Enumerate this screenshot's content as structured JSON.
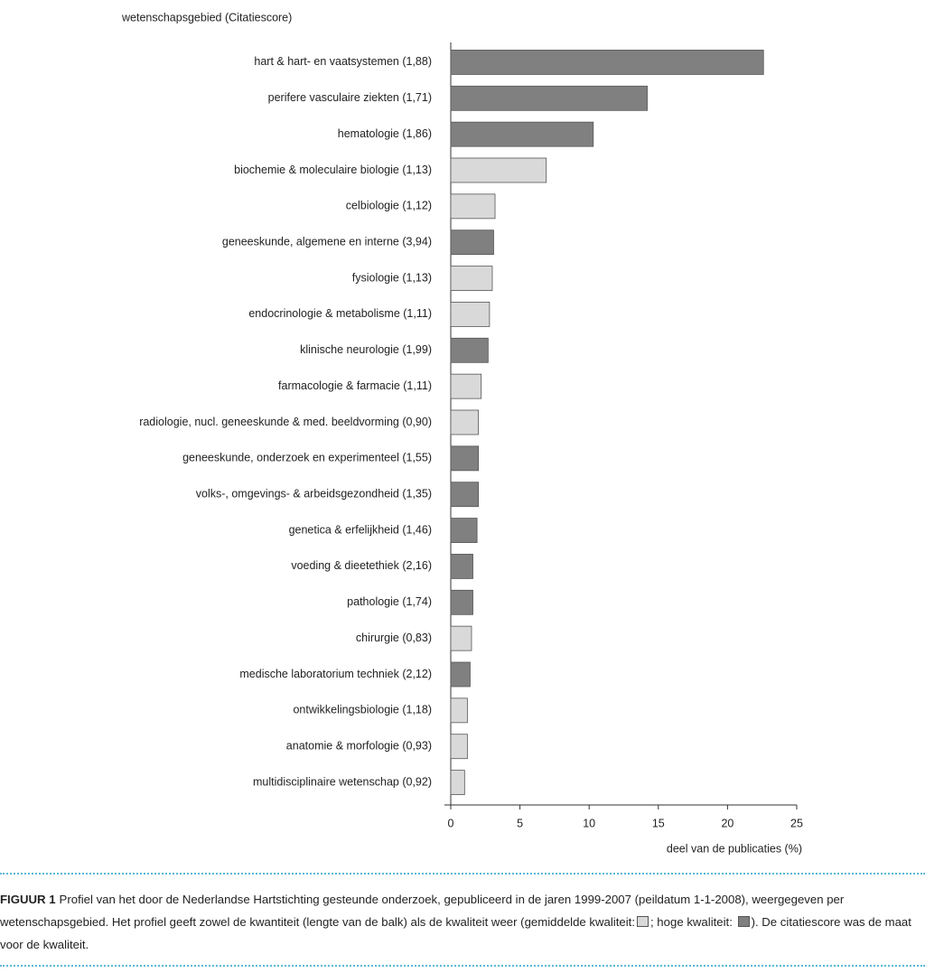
{
  "chart_data": {
    "type": "barh",
    "ylabel": "wetenschapsgebied (Citatiescore)",
    "xlabel": "deel van de publicaties (%)",
    "categories": [
      "hart & hart- en vaatsystemen (1,88)",
      "perifere vasculaire ziekten (1,71)",
      "hematologie (1,86)",
      "biochemie & moleculaire biologie (1,13)",
      "celbiologie (1,12)",
      "geneeskunde, algemene en interne (3,94)",
      "fysiologie (1,13)",
      "endocrinologie & metabolisme (1,11)",
      "klinische neurologie (1,99)",
      "farmacologie & farmacie (1,11)",
      "radiologie, nucl. geneeskunde & med. beeldvorming (0,90)",
      "geneeskunde, onderzoek en experimenteel (1,55)",
      "volks-, omgevings- & arbeidsgezondheid (1,35)",
      "genetica & erfelijkheid (1,46)",
      "voeding & dieetethiek (2,16)",
      "pathologie (1,74)",
      "chirurgie (0,83)",
      "medische laboratorium techniek (2,12)",
      "ontwikkelingsbiologie (1,18)",
      "anatomie & morfologie (0,93)",
      "multidisciplinaire wetenschap (0,92)"
    ],
    "values": [
      22.6,
      14.2,
      10.3,
      6.9,
      3.2,
      3.1,
      3.0,
      2.8,
      2.7,
      2.2,
      2.0,
      2.0,
      2.0,
      1.9,
      1.6,
      1.6,
      1.5,
      1.4,
      1.2,
      1.2,
      1.0
    ],
    "colors": [
      "#808080",
      "#808080",
      "#808080",
      "#d9d9d9",
      "#d9d9d9",
      "#808080",
      "#d9d9d9",
      "#d9d9d9",
      "#808080",
      "#d9d9d9",
      "#d9d9d9",
      "#808080",
      "#808080",
      "#808080",
      "#808080",
      "#808080",
      "#d9d9d9",
      "#808080",
      "#d9d9d9",
      "#d9d9d9",
      "#d9d9d9"
    ],
    "xlim": [
      0,
      25
    ],
    "xticks": [
      0,
      5,
      10,
      15,
      20,
      25
    ]
  },
  "caption": {
    "label": "FIGUUR 1",
    "parts": [
      "Profiel van het door de Nederlandse Hartstichting gesteunde onderzoek, gepubliceerd in de jaren 1999-2007 (peildatum 1-1-2008), weergegeven per wetenschapsgebied. Het profiel geeft zowel de kwantiteit (lengte van de balk) als de kwaliteit weer (gemiddelde kwaliteit:",
      "; hoge kwaliteit:",
      "). De citatiescore was de maat voor de kwaliteit."
    ]
  }
}
